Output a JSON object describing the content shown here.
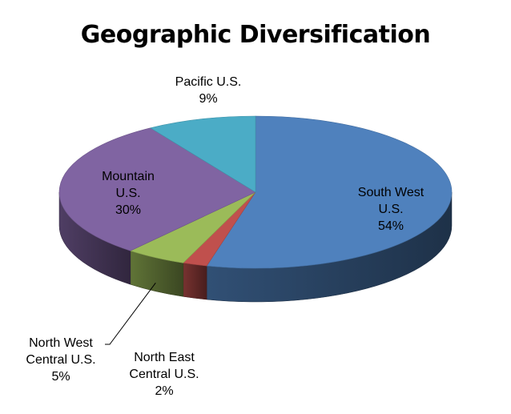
{
  "chart_data": {
    "type": "pie",
    "title": "Geographic Diversification",
    "style": "3d",
    "slices": [
      {
        "label": "South West U.S.",
        "label_lines": [
          "South West",
          "U.S."
        ],
        "value": 54,
        "value_label": "54%",
        "color": "#4F81BD"
      },
      {
        "label": "North East Central U.S.",
        "label_lines": [
          "North East",
          "Central U.S."
        ],
        "value": 2,
        "value_label": "2%",
        "color": "#C0504D"
      },
      {
        "label": "North West Central U.S.",
        "label_lines": [
          "North West",
          "Central U.S."
        ],
        "value": 5,
        "value_label": "5%",
        "color": "#9BBB59"
      },
      {
        "label": "Mountain U.S.",
        "label_lines": [
          "Mountain",
          "U.S."
        ],
        "value": 30,
        "value_label": "30%",
        "color": "#8064A2"
      },
      {
        "label": "Pacific U.S.",
        "label_lines": [
          "Pacific U.S."
        ],
        "value": 9,
        "value_label": "9%",
        "color": "#4BACC6"
      }
    ]
  }
}
